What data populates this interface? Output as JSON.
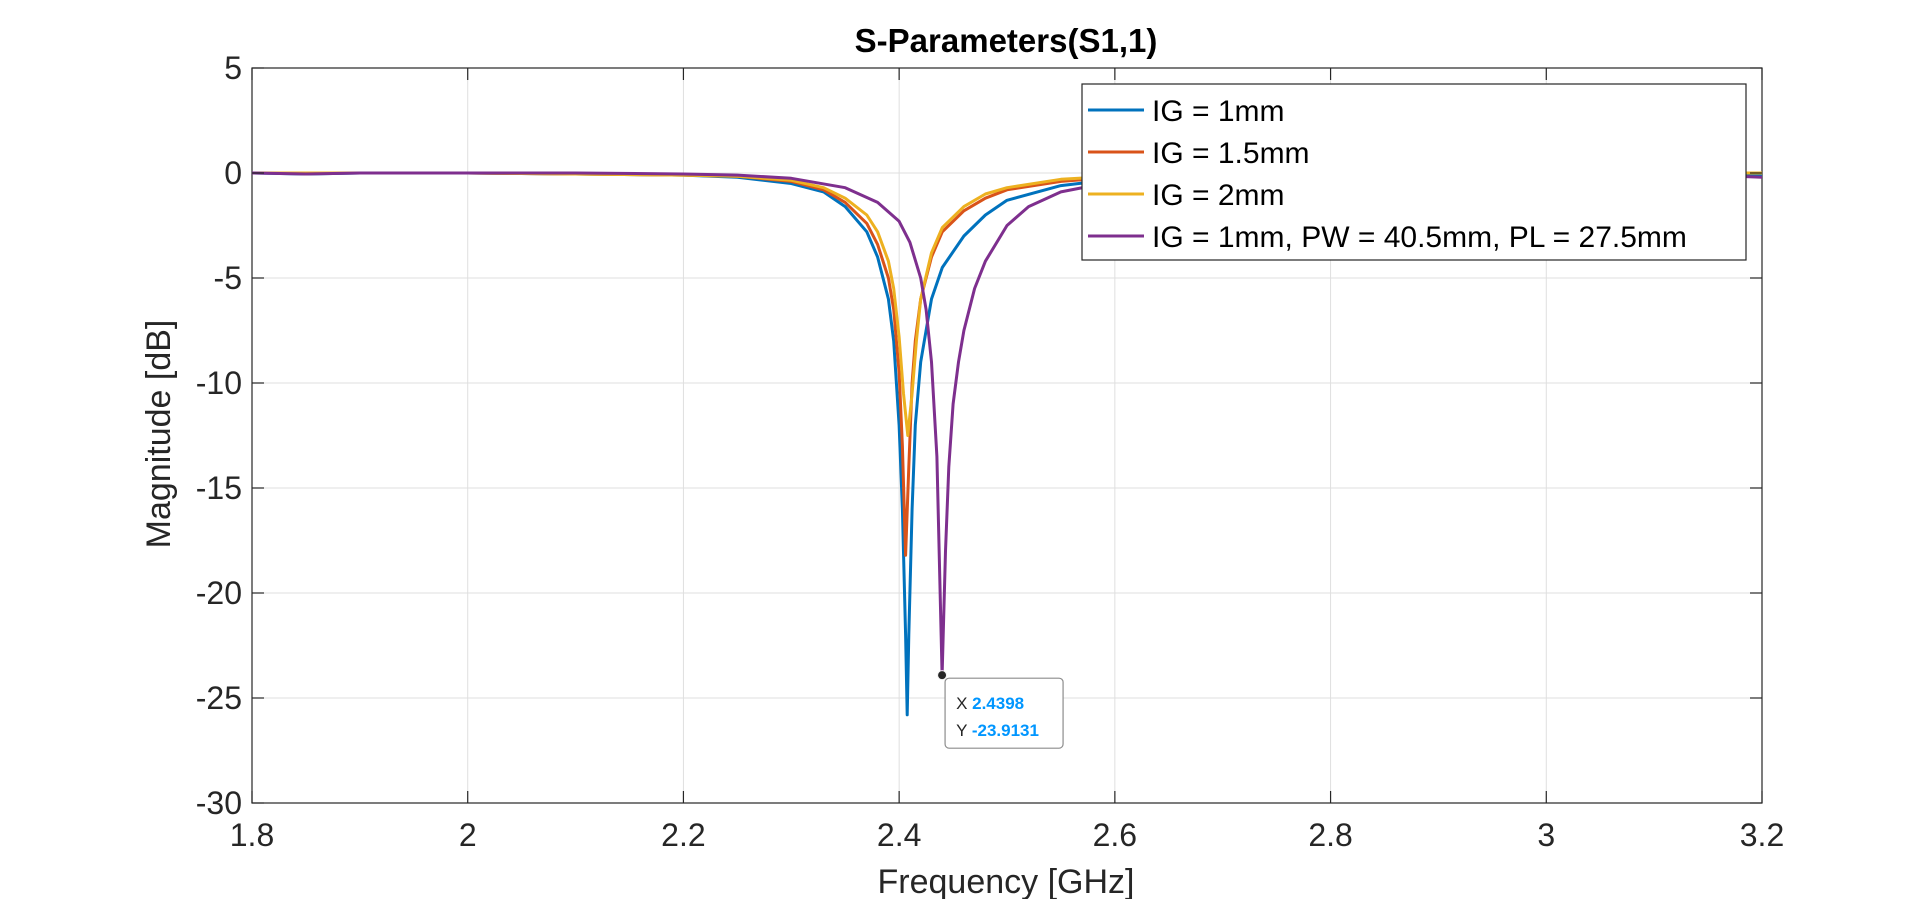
{
  "chart_data": {
    "type": "line",
    "title": "S-Parameters(S1,1)",
    "xlabel": "Frequency [GHz]",
    "ylabel": "Magnitude [dB]",
    "xlim": [
      1.8,
      3.2
    ],
    "ylim": [
      -30,
      5
    ],
    "xticks": [
      1.8,
      2,
      2.2,
      2.4,
      2.6,
      2.8,
      3,
      3.2
    ],
    "xtick_labels": [
      "1.8",
      "2",
      "2.2",
      "2.4",
      "2.6",
      "2.8",
      "3",
      "3.2"
    ],
    "yticks": [
      5,
      0,
      -5,
      -10,
      -15,
      -20,
      -25,
      -30
    ],
    "ytick_labels": [
      "5",
      "0",
      "-5",
      "-10",
      "-15",
      "-20",
      "-25",
      "-30"
    ],
    "grid": true,
    "legend_position": "top-right",
    "series": [
      {
        "name": "IG = 1mm",
        "color": "#0072BD",
        "x": [
          1.8,
          1.85,
          1.9,
          2.0,
          2.1,
          2.2,
          2.25,
          2.3,
          2.33,
          2.35,
          2.37,
          2.38,
          2.39,
          2.395,
          2.4,
          2.403,
          2.406,
          2.4075,
          2.409,
          2.412,
          2.415,
          2.42,
          2.43,
          2.44,
          2.46,
          2.48,
          2.5,
          2.55,
          2.6,
          2.7,
          2.8,
          2.9,
          3.0,
          3.1,
          3.2
        ],
        "y": [
          0.0,
          -0.05,
          0.0,
          0.0,
          -0.05,
          -0.1,
          -0.2,
          -0.5,
          -0.9,
          -1.6,
          -2.8,
          -4.0,
          -6.0,
          -8.0,
          -12.0,
          -16.0,
          -22.0,
          -25.8,
          -22.0,
          -16.0,
          -12.0,
          -9.0,
          -6.0,
          -4.5,
          -3.0,
          -2.0,
          -1.3,
          -0.6,
          -0.3,
          -0.1,
          -0.05,
          0.0,
          0.0,
          0.0,
          -0.1
        ]
      },
      {
        "name": "IG = 1.5mm",
        "color": "#D95319",
        "x": [
          1.8,
          1.85,
          1.9,
          2.0,
          2.1,
          2.2,
          2.25,
          2.3,
          2.33,
          2.35,
          2.37,
          2.38,
          2.39,
          2.395,
          2.4,
          2.403,
          2.406,
          2.409,
          2.412,
          2.415,
          2.42,
          2.43,
          2.44,
          2.46,
          2.48,
          2.5,
          2.55,
          2.6,
          2.7,
          2.8,
          2.9,
          3.0,
          3.1,
          3.2
        ],
        "y": [
          0.0,
          0.0,
          0.0,
          0.0,
          -0.05,
          -0.1,
          -0.15,
          -0.4,
          -0.8,
          -1.4,
          -2.4,
          -3.4,
          -5.0,
          -6.5,
          -9.5,
          -13.0,
          -18.2,
          -14.0,
          -10.0,
          -8.0,
          -6.0,
          -4.0,
          -2.8,
          -1.8,
          -1.2,
          -0.8,
          -0.4,
          -0.2,
          -0.1,
          0.0,
          0.0,
          0.0,
          0.0,
          0.0
        ]
      },
      {
        "name": "IG = 2mm",
        "color": "#EDB120",
        "x": [
          1.8,
          1.85,
          1.9,
          2.0,
          2.1,
          2.2,
          2.25,
          2.3,
          2.33,
          2.35,
          2.37,
          2.38,
          2.39,
          2.395,
          2.4,
          2.404,
          2.408,
          2.412,
          2.416,
          2.42,
          2.43,
          2.44,
          2.46,
          2.48,
          2.5,
          2.55,
          2.6,
          2.7,
          2.8,
          2.9,
          3.0,
          3.1,
          3.2
        ],
        "y": [
          0.0,
          0.0,
          0.0,
          0.0,
          -0.05,
          -0.1,
          -0.15,
          -0.35,
          -0.7,
          -1.2,
          -2.0,
          -2.8,
          -4.2,
          -5.5,
          -7.8,
          -10.5,
          -12.5,
          -10.5,
          -8.0,
          -6.0,
          -3.8,
          -2.6,
          -1.6,
          -1.0,
          -0.7,
          -0.3,
          -0.15,
          -0.05,
          0.0,
          0.0,
          0.0,
          0.0,
          0.0
        ]
      },
      {
        "name": "IG = 1mm, PW = 40.5mm, PL = 27.5mm",
        "color": "#7E2F8E",
        "x": [
          1.8,
          1.85,
          1.9,
          2.0,
          2.1,
          2.2,
          2.25,
          2.3,
          2.35,
          2.38,
          2.4,
          2.41,
          2.42,
          2.425,
          2.43,
          2.435,
          2.4398,
          2.443,
          2.446,
          2.45,
          2.455,
          2.46,
          2.47,
          2.48,
          2.5,
          2.52,
          2.55,
          2.6,
          2.7,
          2.8,
          2.9,
          3.0,
          3.1,
          3.2
        ],
        "y": [
          0.0,
          -0.05,
          0.0,
          0.0,
          0.0,
          -0.05,
          -0.1,
          -0.25,
          -0.7,
          -1.4,
          -2.3,
          -3.3,
          -5.0,
          -6.5,
          -9.0,
          -13.5,
          -23.9131,
          -18.0,
          -14.0,
          -11.0,
          -9.0,
          -7.5,
          -5.5,
          -4.2,
          -2.5,
          -1.6,
          -0.9,
          -0.4,
          -0.15,
          -0.05,
          0.0,
          0.0,
          0.0,
          -0.2
        ]
      }
    ],
    "datatip": {
      "x_label": "X",
      "x_value": "2.4398",
      "y_label": "Y",
      "y_value": "-23.9131",
      "x": 2.4398,
      "y": -23.9131
    }
  }
}
